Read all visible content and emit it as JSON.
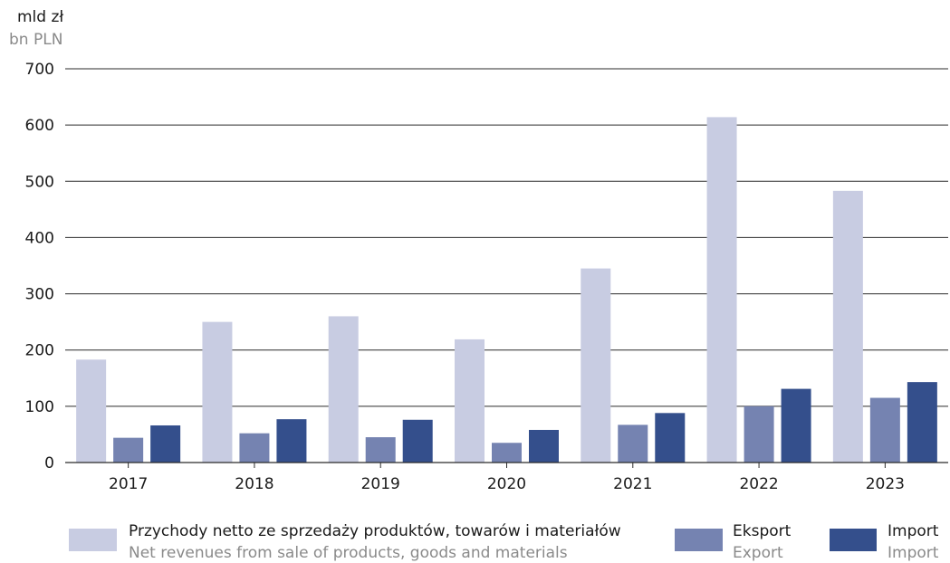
{
  "chart_data": {
    "type": "bar",
    "ylabel": "mld zł",
    "ylabel_en": "bn PLN",
    "ylim": [
      0,
      700
    ],
    "yticks": [
      0,
      100,
      200,
      300,
      400,
      500,
      600,
      700
    ],
    "grid": true,
    "legend_position": "bottom",
    "categories": [
      "2017",
      "2018",
      "2019",
      "2020",
      "2021",
      "2022",
      "2023"
    ],
    "series": [
      {
        "name": "Przychody netto ze sprzedaży produktów, towarów i materiałów",
        "name_en": "Net revenues from sale of products, goods and materials",
        "color": "#c8cce2",
        "values": [
          183,
          250,
          260,
          219,
          345,
          614,
          483
        ]
      },
      {
        "name": "Eksport",
        "name_en": "Export",
        "color": "#7583b1",
        "values": [
          44,
          52,
          45,
          35,
          67,
          100,
          115
        ]
      },
      {
        "name": "Import",
        "name_en": "Import",
        "color": "#344f8c",
        "values": [
          66,
          77,
          76,
          58,
          88,
          131,
          143
        ]
      }
    ]
  }
}
